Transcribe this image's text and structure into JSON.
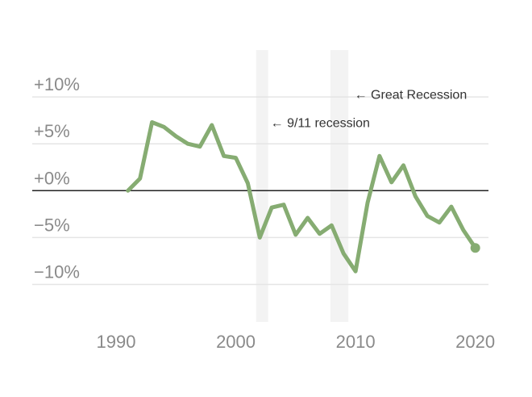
{
  "chart_data": {
    "type": "line",
    "title": "",
    "xlabel": "",
    "ylabel": "",
    "xlim": [
      1983,
      2021.1
    ],
    "ylim": [
      -14,
      15
    ],
    "grid": true,
    "y_ticks": [
      {
        "value": 10,
        "label": "+10%"
      },
      {
        "value": 5,
        "label": "+5%"
      },
      {
        "value": 0,
        "label": "+0%"
      },
      {
        "value": -5,
        "label": "−5%"
      },
      {
        "value": -10,
        "label": "−10%"
      }
    ],
    "x_ticks": [
      {
        "value": 1990,
        "label": "1990"
      },
      {
        "value": 2000,
        "label": "2000"
      },
      {
        "value": 2010,
        "label": "2010"
      },
      {
        "value": 2020,
        "label": "2020"
      }
    ],
    "recessions": [
      {
        "start": 2001.7,
        "end": 2002.7,
        "label": "← 9/11 recession",
        "label_x": 2002.9,
        "label_y": 6.8
      },
      {
        "start": 2007.9,
        "end": 2009.4,
        "label": "← Great Recession",
        "label_x": 2009.9,
        "label_y": 9.8
      }
    ],
    "series": [
      {
        "color": "#86ac72",
        "x": [
          1991,
          1992,
          1993,
          1994,
          1995,
          1996,
          1997,
          1998,
          1999,
          2000,
          2001,
          2002,
          2003,
          2004,
          2005,
          2006,
          2007,
          2008,
          2009,
          2010,
          2011,
          2012,
          2013,
          2014,
          2015,
          2016,
          2017,
          2018,
          2019,
          2020
        ],
        "y": [
          0,
          1.3,
          7.3,
          6.8,
          5.8,
          5.0,
          4.7,
          7.0,
          3.7,
          3.5,
          0.8,
          -5.0,
          -1.8,
          -1.5,
          -4.7,
          -2.9,
          -4.6,
          -3.7,
          -6.7,
          -8.6,
          -1.3,
          3.7,
          0.9,
          2.7,
          -0.6,
          -2.7,
          -3.4,
          -1.7,
          -4.2,
          -6.1
        ]
      }
    ],
    "zero_line_color": "#222222",
    "gridline_color": "#e5e5e5",
    "recession_color": "#f3f3f3"
  }
}
